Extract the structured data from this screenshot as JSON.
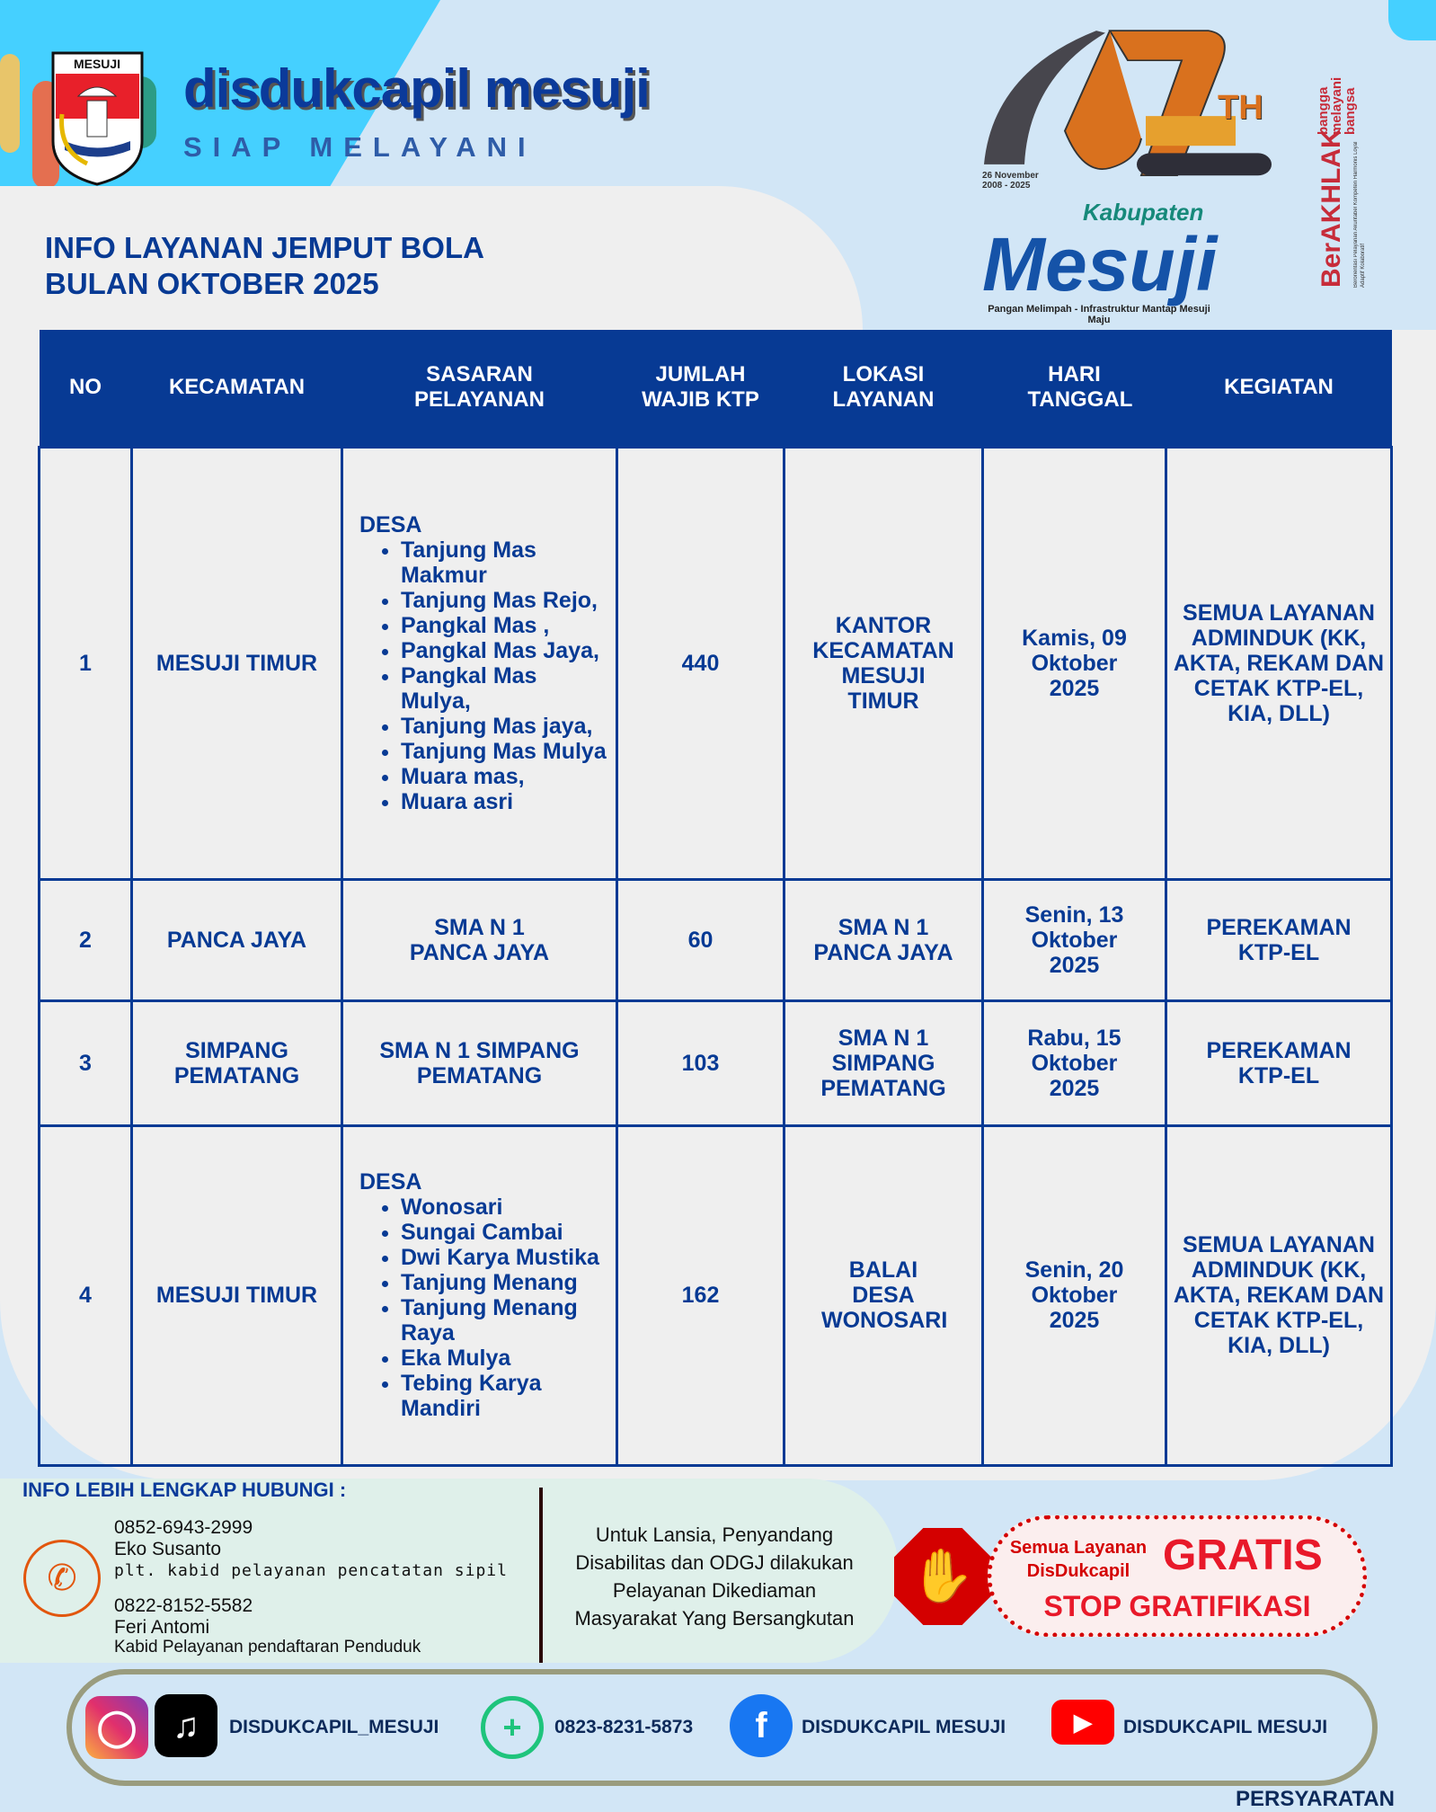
{
  "header": {
    "crest_text": "MESUJI",
    "brand": "disdukcapil mesuji",
    "tagline": "SIAP MELAYANI",
    "anniversary_logo": {
      "date": "26 November 2008 - 2025",
      "number": "17",
      "suffix": "TH",
      "kabupaten": "Kabupaten",
      "name": "Mesuji",
      "motto": "Pangan Melimpah - Infrastruktur Mantap Mesuji Maju"
    },
    "berakhlak": {
      "word": "BerAKHLAK",
      "hashtag": "bangga melayani bangsa",
      "subtext": "Berorientasi Pelayanan Akuntabel Kompeten Harmonis Loyal Adaptif Kolaboratif"
    }
  },
  "title": {
    "line1": "INFO LAYANAN JEMPUT BOLA",
    "line2": "BULAN OKTOBER 2025"
  },
  "table": {
    "headers": [
      "NO",
      "KECAMATAN",
      "SASARAN PELAYANAN",
      "JUMLAH WAJIB KTP",
      "LOKASI LAYANAN",
      "HARI TANGGAL",
      "KEGIATAN"
    ],
    "rows": [
      {
        "no": "1",
        "kecamatan": "MESUJI TIMUR",
        "sasaran_label": "DESA",
        "sasaran": [
          "Tanjung Mas Makmur",
          "Tanjung Mas Rejo,",
          "Pangkal Mas ,",
          "Pangkal  Mas Jaya,",
          "Pangkal  Mas Mulya,",
          "Tanjung Mas jaya,",
          "Tanjung Mas Mulya",
          "Muara mas,",
          "Muara asri"
        ],
        "jumlah": "440",
        "lokasi": "KANTOR KECAMATAN MESUJI TIMUR",
        "tanggal": "Kamis, 09 Oktober 2025",
        "kegiatan": "SEMUA LAYANAN ADMINDUK (KK, AKTA, REKAM DAN CETAK KTP-EL, KIA, DLL)"
      },
      {
        "no": "2",
        "kecamatan": "PANCA JAYA",
        "sasaran_text": "SMA N 1 PANCA JAYA",
        "jumlah": "60",
        "lokasi": "SMA N 1 PANCA JAYA",
        "tanggal": "Senin, 13 Oktober 2025",
        "kegiatan": "PEREKAMAN KTP-EL"
      },
      {
        "no": "3",
        "kecamatan": "SIMPANG PEMATANG",
        "sasaran_text": "SMA N 1 SIMPANG PEMATANG",
        "jumlah": "103",
        "lokasi": "SMA N 1 SIMPANG PEMATANG",
        "tanggal": "Rabu, 15 Oktober 2025",
        "kegiatan": "PEREKAMAN KTP-EL"
      },
      {
        "no": "4",
        "kecamatan": "MESUJI TIMUR",
        "sasaran_label": "DESA",
        "sasaran": [
          "Wonosari",
          "Sungai Cambai",
          "Dwi Karya Mustika",
          "Tanjung Menang",
          "Tanjung Menang Raya",
          "Eka Mulya",
          "Tebing Karya Mandiri"
        ],
        "jumlah": "162",
        "lokasi": "BALAI DESA WONOSARI",
        "tanggal": "Senin, 20 Oktober 2025",
        "kegiatan": "SEMUA LAYANAN ADMINDUK (KK, AKTA, REKAM DAN CETAK KTP-EL, KIA, DLL)"
      }
    ]
  },
  "contact": {
    "heading": "INFO LEBIH LENGKAP HUBUNGI :",
    "persons": [
      {
        "phone": "0852-6943-2999",
        "name": "Eko Susanto",
        "role": "plt. kabid pelayanan pencatatan sipil"
      },
      {
        "phone": "0822-8152-5582",
        "name": "Feri Antomi",
        "role": "Kabid Pelayanan pendaftaran Penduduk"
      }
    ]
  },
  "notice": [
    "Untuk Lansia, Penyandang",
    "Disabilitas dan ODGJ dilakukan",
    "Pelayanan Dikediaman",
    "Masyarakat Yang Bersangkutan"
  ],
  "gratis": {
    "line1": "Semua Layanan",
    "line2": "DisDukcapil",
    "big": "GRATIS",
    "stop": "STOP GRATIFIKASI"
  },
  "social": {
    "instagram_tiktok": "DISDUKCAPIL_MESUJI",
    "whatsapp": "0823-8231-5873",
    "facebook": "DISDUKCAPIL MESUJI",
    "youtube": "DISDUKCAPIL MESUJI"
  },
  "cutoff_text": "PERSYARATAN",
  "colors": {
    "primary": "#073a94",
    "cyan": "#45d0ff",
    "red": "#d40000",
    "orange": "#e2560d"
  }
}
